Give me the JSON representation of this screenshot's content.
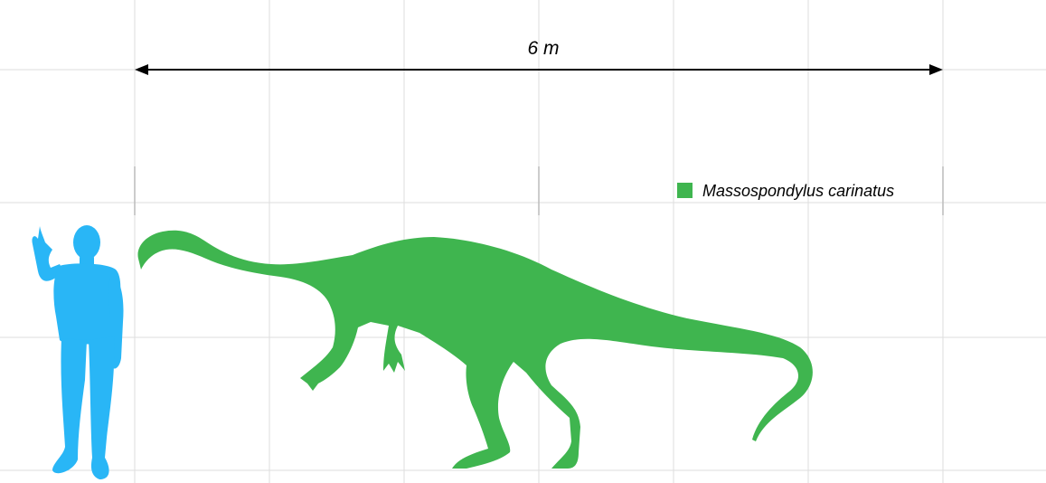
{
  "scale_bar": {
    "label": "6 m",
    "length_m": 6
  },
  "legend": [
    {
      "label": "Massospondylus carinatus",
      "color": "#3fb54f"
    }
  ],
  "figures": {
    "human": {
      "name": "human silhouette",
      "color": "#29b6f6"
    },
    "dinosaur": {
      "name": "Massospondylus carinatus silhouette",
      "color": "#3fb54f"
    }
  },
  "colors": {
    "grid": "#dddddd",
    "background": "#ffffff"
  }
}
